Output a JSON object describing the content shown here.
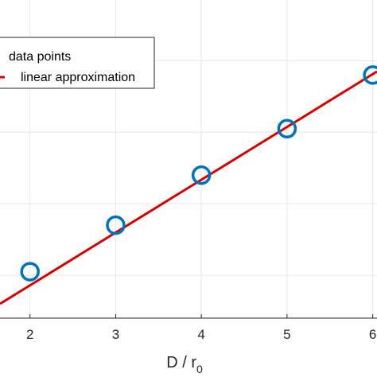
{
  "chart_data": {
    "type": "scatter",
    "title": "",
    "xlabel": "D / r",
    "xlabel_subscript": "0",
    "ylabel": "",
    "xlim": [
      1.65,
      6.05
    ],
    "ylim": [
      0.9,
      5.35
    ],
    "x_ticks": [
      2,
      3,
      4,
      5,
      6
    ],
    "grid": true,
    "legend_placement": "top-left",
    "series": [
      {
        "name": "data points",
        "kind": "markers",
        "marker": "circle",
        "color": "#0072BD",
        "x": [
          2,
          3,
          4,
          5,
          6
        ],
        "y": [
          1.55,
          2.2,
          2.9,
          3.55,
          4.3
        ]
      },
      {
        "name": "linear approximation",
        "kind": "line",
        "color": "#D90000",
        "x": [
          1.65,
          6.05
        ],
        "y": [
          1.1,
          4.35
        ]
      }
    ]
  }
}
